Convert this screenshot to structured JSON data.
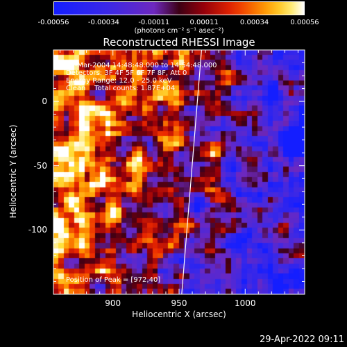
{
  "chart_data": {
    "type": "heatmap",
    "title": "Reconstructed RHESSI Image",
    "xlabel": "Heliocentric X (arcsec)",
    "ylabel": "Heliocentric Y (arcsec)",
    "xlim": [
      855,
      1045
    ],
    "ylim": [
      -150,
      40
    ],
    "x_ticks": [
      900,
      950,
      1000
    ],
    "y_ticks": [
      0,
      -50,
      -100
    ],
    "colorbar": {
      "ticks": [
        "-0.00056",
        "-0.00034",
        "-0.00011",
        "0.00011",
        "0.00034",
        "0.00056"
      ],
      "unit": "(photons cm⁻² s⁻¹ asec⁻²)",
      "range": [
        -0.00056,
        0.00056
      ]
    },
    "annotations": {
      "time": "10-Mar-2004 14:48:48.000 to 14:54:48.000",
      "detectors": "Detectors: 3F 4F 5F 6F 7F 8F, Att 0",
      "energy": "Energy Range: 12.0 - 25.0 keV",
      "method_counts": "Clean    Total counts: 1.87E+04",
      "peak": "Position of Peak = [972,40]"
    },
    "limb_line": [
      [
        967,
        40
      ],
      [
        952,
        -150
      ]
    ]
  },
  "timestamp": "29-Apr-2022 09:11"
}
